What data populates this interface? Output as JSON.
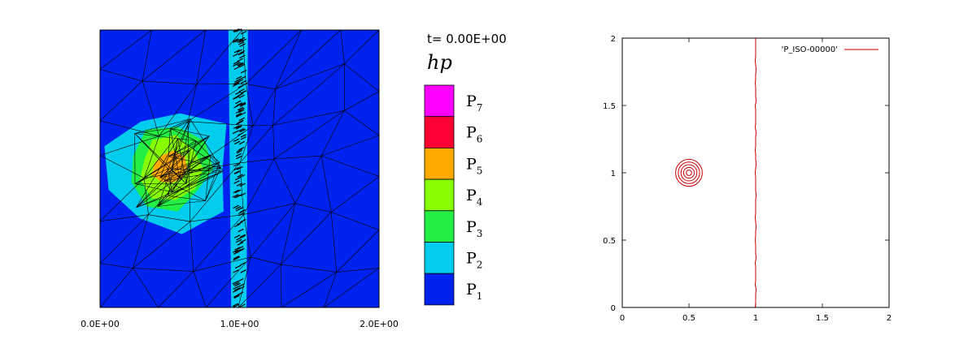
{
  "left_panel": {
    "time_label": "t= 0.00E+00",
    "legend_title": "hp",
    "x_ticks": [
      {
        "value": 0.0,
        "label": "0.0E+00"
      },
      {
        "value": 1.0,
        "label": "1.0E+00"
      },
      {
        "value": 2.0,
        "label": "2.0E+00"
      }
    ],
    "legend": [
      {
        "letter": "P",
        "sub": "7",
        "color": "#ff00ff"
      },
      {
        "letter": "P",
        "sub": "6",
        "color": "#ff0033"
      },
      {
        "letter": "P",
        "sub": "5",
        "color": "#ffaa00"
      },
      {
        "letter": "P",
        "sub": "4",
        "color": "#88ff00"
      },
      {
        "letter": "P",
        "sub": "3",
        "color": "#22ee44"
      },
      {
        "letter": "P",
        "sub": "2",
        "color": "#00ccee"
      },
      {
        "letter": "P",
        "sub": "1",
        "color": "#0022ee"
      }
    ]
  },
  "chart_data": [
    {
      "type": "heatmap",
      "title": "",
      "xlabel": "",
      "ylabel": "",
      "xlim": [
        0,
        2
      ],
      "ylim": [
        0,
        2
      ],
      "colorbar_title": "hp",
      "annotation": "t= 0.00E+00",
      "levels": [
        "P1",
        "P2",
        "P3",
        "P4",
        "P5",
        "P6",
        "P7"
      ],
      "regions": [
        {
          "level": "P1",
          "description": "background"
        },
        {
          "level": "P2",
          "center": [
            0.5,
            1.0
          ],
          "radius": 0.45
        },
        {
          "level": "P3",
          "center": [
            0.5,
            1.0
          ],
          "radius": 0.3
        },
        {
          "level": "P4",
          "center": [
            0.5,
            1.0
          ],
          "radius": 0.22
        },
        {
          "level": "P5",
          "center": [
            0.5,
            1.0
          ],
          "radius": 0.12
        },
        {
          "level": "P2",
          "description": "band along interface",
          "x": 1.0
        }
      ]
    },
    {
      "type": "line",
      "title": "",
      "xlabel": "",
      "ylabel": "",
      "xlim": [
        0,
        2
      ],
      "ylim": [
        0,
        2
      ],
      "x_ticks": [
        0,
        0.5,
        1,
        1.5,
        2
      ],
      "y_ticks": [
        0,
        0.5,
        1,
        1.5,
        2
      ],
      "x_tick_labels": [
        "0",
        "0.5",
        "1",
        "1.5",
        "2"
      ],
      "y_tick_labels": [
        "0",
        "0.5",
        "1",
        "1.5",
        "2"
      ],
      "grid": false,
      "legend_position": "top-right",
      "series": [
        {
          "name": "'P_ISO-00000'",
          "color": "#cc0000",
          "vertical_line_x": 1.0,
          "contours": {
            "center": [
              0.5,
              1.0
            ],
            "radii": [
              0.02,
              0.04,
              0.06,
              0.08,
              0.1
            ]
          }
        }
      ]
    }
  ]
}
